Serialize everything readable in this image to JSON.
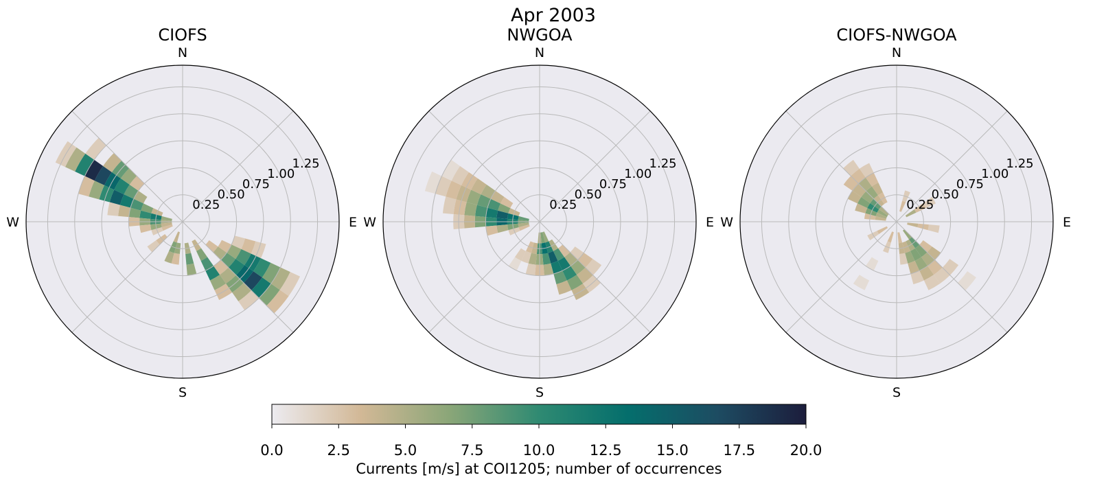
{
  "figure": {
    "suptitle": "Apr 2003"
  },
  "chart_data": {
    "type": "polar-histogram",
    "panels": [
      {
        "title": "CIOFS",
        "direction_labels": [
          "N",
          "E",
          "S",
          "W"
        ],
        "radial_ticks": [
          "0.25",
          "0.50",
          "0.75",
          "1.00",
          "1.25"
        ],
        "rmax": 1.45,
        "bins": [
          {
            "dir": 300,
            "r": [
              0.45,
              0.55,
              0.65,
              0.75,
              0.85,
              0.95,
              1.05,
              1.15,
              1.25
            ],
            "count": [
              5,
              8,
              11,
              14,
              17,
              19,
              11,
              5,
              2
            ]
          },
          {
            "dir": 290,
            "r": [
              0.25,
              0.35,
              0.45,
              0.55,
              0.65,
              0.75,
              0.85,
              0.95
            ],
            "count": [
              4,
              7,
              9,
              12,
              15,
              10,
              6,
              3
            ]
          },
          {
            "dir": 280,
            "r": [
              0.15,
              0.25,
              0.35,
              0.45,
              0.55,
              0.65
            ],
            "count": [
              6,
              12,
              10,
              7,
              4,
              2
            ]
          },
          {
            "dir": 310,
            "r": [
              0.55,
              0.65,
              0.75,
              0.85,
              1.05
            ],
            "count": [
              3,
              6,
              8,
              4,
              2
            ]
          },
          {
            "dir": 270,
            "r": [
              0.15,
              0.25,
              0.35,
              0.45
            ],
            "count": [
              5,
              9,
              6,
              3
            ]
          },
          {
            "dir": 260,
            "r": [
              0.15,
              0.25,
              0.35
            ],
            "count": [
              4,
              6,
              3
            ]
          },
          {
            "dir": 250,
            "r": [
              0.15,
              0.25
            ],
            "count": [
              3,
              2
            ]
          },
          {
            "dir": 200,
            "r": [
              0.15,
              0.25,
              0.35
            ],
            "count": [
              4,
              7,
              5
            ]
          },
          {
            "dir": 190,
            "r": [
              0.25,
              0.35
            ],
            "count": [
              6,
              3
            ]
          },
          {
            "dir": 170,
            "r": [
              0.25,
              0.35,
              0.45
            ],
            "count": [
              5,
              8,
              6
            ]
          },
          {
            "dir": 150,
            "r": [
              0.25,
              0.35,
              0.45,
              0.55,
              0.65,
              0.75
            ],
            "count": [
              4,
              7,
              9,
              11,
              6,
              3
            ]
          },
          {
            "dir": 130,
            "r": [
              0.35,
              0.45,
              0.55,
              0.65,
              0.75,
              0.85,
              0.95,
              1.05,
              1.15
            ],
            "count": [
              3,
              5,
              8,
              11,
              14,
              17,
              12,
              7,
              3
            ]
          },
          {
            "dir": 120,
            "r": [
              0.45,
              0.55,
              0.65,
              0.75,
              0.85,
              0.95,
              1.05,
              1.15
            ],
            "count": [
              3,
              6,
              9,
              12,
              10,
              7,
              5,
              2
            ]
          },
          {
            "dir": 140,
            "r": [
              0.55,
              0.65,
              0.75,
              0.85,
              0.95
            ],
            "count": [
              3,
              5,
              7,
              5,
              2
            ]
          },
          {
            "dir": 110,
            "r": [
              0.55,
              0.65,
              0.75
            ],
            "count": [
              2,
              3,
              2
            ]
          },
          {
            "dir": 230,
            "r": [
              0.25,
              0.35
            ],
            "count": [
              3,
              2
            ]
          }
        ]
      },
      {
        "title": "NWGOA",
        "direction_labels": [
          "N",
          "E",
          "S",
          "W"
        ],
        "radial_ticks": [
          "0.25",
          "0.50",
          "0.75",
          "1.00",
          "1.25"
        ],
        "rmax": 1.45,
        "bins": [
          {
            "dir": 280,
            "r": [
              0.15,
              0.25,
              0.35,
              0.45,
              0.55,
              0.65,
              0.75,
              0.85
            ],
            "count": [
              8,
              13,
              15,
              12,
              9,
              6,
              3,
              2
            ]
          },
          {
            "dir": 270,
            "r": [
              0.15,
              0.25,
              0.35,
              0.45,
              0.55,
              0.65,
              0.75
            ],
            "count": [
              7,
              11,
              14,
              10,
              7,
              4,
              2
            ]
          },
          {
            "dir": 290,
            "r": [
              0.25,
              0.35,
              0.45,
              0.55,
              0.65,
              0.75,
              0.85,
              0.95,
              1.05
            ],
            "count": [
              4,
              7,
              9,
              8,
              6,
              4,
              3,
              2,
              1
            ]
          },
          {
            "dir": 300,
            "r": [
              0.35,
              0.45,
              0.55,
              0.65,
              0.75,
              0.85,
              0.95
            ],
            "count": [
              3,
              4,
              5,
              4,
              3,
              2,
              1
            ]
          },
          {
            "dir": 260,
            "r": [
              0.15,
              0.25,
              0.35,
              0.45
            ],
            "count": [
              5,
              7,
              5,
              3
            ]
          },
          {
            "dir": 250,
            "r": [
              0.15,
              0.25
            ],
            "count": [
              3,
              2
            ]
          },
          {
            "dir": 160,
            "r": [
              0.15,
              0.25,
              0.35,
              0.45,
              0.55,
              0.65
            ],
            "count": [
              6,
              11,
              15,
              12,
              8,
              4
            ]
          },
          {
            "dir": 150,
            "r": [
              0.25,
              0.35,
              0.45,
              0.55,
              0.65,
              0.75
            ],
            "count": [
              5,
              9,
              12,
              10,
              7,
              4
            ]
          },
          {
            "dir": 170,
            "r": [
              0.15,
              0.25,
              0.35,
              0.45
            ],
            "count": [
              7,
              13,
              9,
              5
            ]
          },
          {
            "dir": 180,
            "r": [
              0.15,
              0.25,
              0.35,
              0.45
            ],
            "count": [
              5,
              9,
              6,
              3
            ]
          },
          {
            "dir": 140,
            "r": [
              0.35,
              0.45,
              0.55,
              0.65,
              0.75
            ],
            "count": [
              3,
              5,
              6,
              4,
              2
            ]
          },
          {
            "dir": 190,
            "r": [
              0.25,
              0.35,
              0.45
            ],
            "count": [
              4,
              5,
              2
            ]
          },
          {
            "dir": 200,
            "r": [
              0.25,
              0.35
            ],
            "count": [
              3,
              2
            ]
          },
          {
            "dir": 210,
            "r": [
              0.35,
              0.45
            ],
            "count": [
              2,
              1
            ]
          },
          {
            "dir": 130,
            "r": [
              0.45,
              0.55,
              0.65
            ],
            "count": [
              2,
              3,
              2
            ]
          }
        ]
      },
      {
        "title": "CIOFS-NWGOA",
        "direction_labels": [
          "N",
          "E",
          "S",
          "W"
        ],
        "radial_ticks": [
          "0.25",
          "0.50",
          "0.75",
          "1.00",
          "1.25"
        ],
        "rmax": 1.45,
        "bins": [
          {
            "dir": 300,
            "r": [
              0.15,
              0.25,
              0.35,
              0.45
            ],
            "count": [
              6,
              10,
              7,
              4
            ]
          },
          {
            "dir": 310,
            "r": [
              0.15,
              0.25,
              0.35,
              0.45,
              0.55
            ],
            "count": [
              5,
              8,
              6,
              4,
              3
            ]
          },
          {
            "dir": 320,
            "r": [
              0.25,
              0.35,
              0.45,
              0.55,
              0.65
            ],
            "count": [
              4,
              6,
              5,
              3,
              2
            ]
          },
          {
            "dir": 290,
            "r": [
              0.15,
              0.25,
              0.35
            ],
            "count": [
              5,
              7,
              4
            ]
          },
          {
            "dir": 280,
            "r": [
              0.15,
              0.25
            ],
            "count": [
              4,
              3
            ]
          },
          {
            "dir": 330,
            "r": [
              0.25,
              0.35,
              0.45,
              0.55
            ],
            "count": [
              3,
              4,
              3,
              2
            ]
          },
          {
            "dir": 20,
            "r": [
              0.15,
              0.25
            ],
            "count": [
              3,
              2
            ]
          },
          {
            "dir": 60,
            "r": [
              0.15,
              0.25,
              0.35
            ],
            "count": [
              5,
              3,
              2
            ]
          },
          {
            "dir": 100,
            "r": [
              0.15,
              0.25,
              0.35
            ],
            "count": [
              4,
              3,
              2
            ]
          },
          {
            "dir": 140,
            "r": [
              0.15,
              0.25,
              0.35,
              0.45,
              0.55,
              0.65
            ],
            "count": [
              6,
              8,
              7,
              5,
              3,
              2
            ]
          },
          {
            "dir": 150,
            "r": [
              0.25,
              0.35,
              0.45,
              0.55,
              0.65
            ],
            "count": [
              5,
              7,
              6,
              4,
              2
            ]
          },
          {
            "dir": 160,
            "r": [
              0.25,
              0.35,
              0.45,
              0.55
            ],
            "count": [
              4,
              6,
              4,
              2
            ]
          },
          {
            "dir": 170,
            "r": [
              0.15,
              0.25,
              0.35
            ],
            "count": [
              3,
              4,
              2
            ]
          },
          {
            "dir": 200,
            "r": [
              0.15,
              0.25
            ],
            "count": [
              3,
              2
            ]
          },
          {
            "dir": 240,
            "r": [
              0.15,
              0.25
            ],
            "count": [
              3,
              2
            ]
          },
          {
            "dir": 130,
            "r": [
              0.35,
              0.45,
              0.65,
              0.85
            ],
            "count": [
              3,
              4,
              2,
              1
            ]
          },
          {
            "dir": 210,
            "r": [
              0.45,
              0.65
            ],
            "count": [
              1,
              1
            ]
          }
        ]
      }
    ],
    "colorbar": {
      "label": "Currents [m/s] at COI1205; number of occurrences",
      "range": [
        0,
        20
      ],
      "ticks": [
        "0.0",
        "2.5",
        "5.0",
        "7.5",
        "10.0",
        "12.5",
        "15.0",
        "17.5",
        "20.0"
      ],
      "colormap": [
        "#ecebf0",
        "#d2b896",
        "#8aa678",
        "#2f8a72",
        "#046e6c",
        "#1d4c62",
        "#1c1d3c"
      ]
    },
    "colors": {
      "polar_background": "#ebeaf0",
      "grid": "#b9b9b9",
      "outline": "#000000"
    }
  }
}
